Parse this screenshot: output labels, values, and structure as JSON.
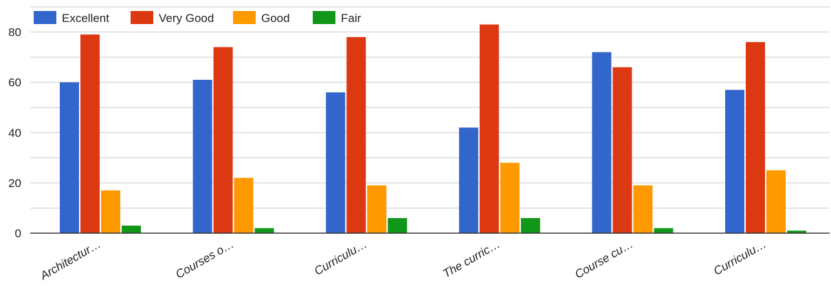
{
  "chart_data": {
    "type": "bar",
    "categories": [
      "Architectur…",
      "Courses o…",
      "Curriculu…",
      "The curric…",
      "Course cu…",
      "Curriculu…"
    ],
    "series": [
      {
        "name": "Excellent",
        "color": "#3366cc",
        "values": [
          60,
          61,
          56,
          42,
          72,
          57
        ]
      },
      {
        "name": "Very Good",
        "color": "#dc3912",
        "values": [
          79,
          74,
          78,
          83,
          66,
          76
        ]
      },
      {
        "name": "Good",
        "color": "#ff9900",
        "values": [
          17,
          22,
          19,
          28,
          19,
          25
        ]
      },
      {
        "name": "Fair",
        "color": "#109618",
        "values": [
          3,
          2,
          6,
          6,
          2,
          1
        ]
      }
    ],
    "ylim": [
      0,
      90
    ],
    "yticks": [
      0,
      20,
      40,
      60,
      80
    ],
    "grid": true,
    "legend_position": "top-left",
    "title": "",
    "xlabel": "",
    "ylabel": ""
  }
}
